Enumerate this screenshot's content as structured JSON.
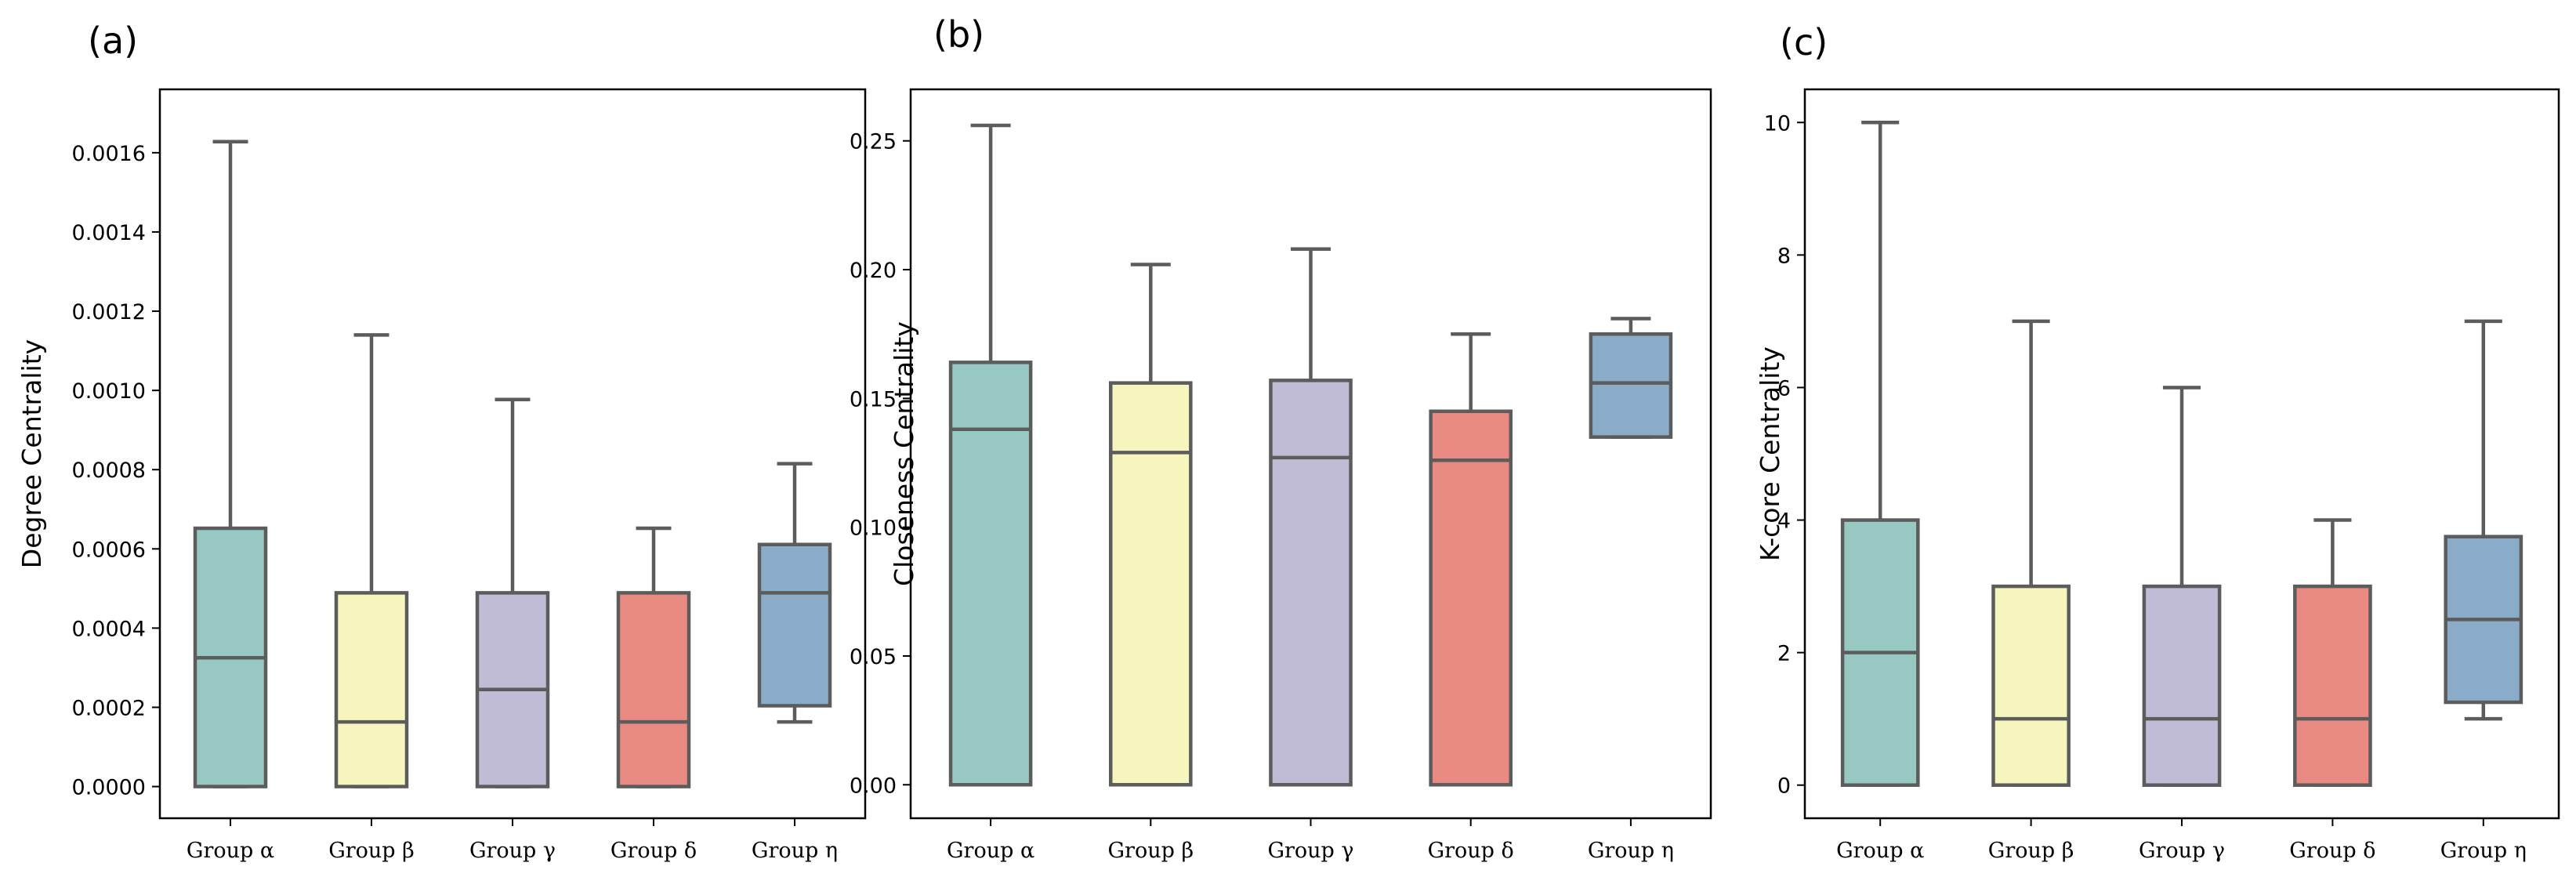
{
  "chart_data": [
    {
      "type": "box",
      "panel": "(a)",
      "ylabel": "Degree Centrality",
      "ylim": [
        -8e-05,
        0.00176
      ],
      "yticks": [
        "0.0000",
        "0.0002",
        "0.0004",
        "0.0006",
        "0.0008",
        "0.0010",
        "0.0012",
        "0.0014",
        "0.0016"
      ],
      "ytick_values": [
        0,
        0.0002,
        0.0004,
        0.0006,
        0.0008,
        0.001,
        0.0012,
        0.0014,
        0.0016
      ],
      "categories": [
        "Group α",
        "Group β",
        "Group γ",
        "Group δ",
        "Group η"
      ],
      "boxes": [
        {
          "whislo": 0,
          "q1": 0,
          "med": 0.000325,
          "q3": 0.000652,
          "whishi": 0.001628
        },
        {
          "whislo": 0,
          "q1": 0,
          "med": 0.000163,
          "q3": 0.000489,
          "whishi": 0.00114
        },
        {
          "whislo": 0,
          "q1": 0,
          "med": 0.000245,
          "q3": 0.000489,
          "whishi": 0.000977
        },
        {
          "whislo": 0,
          "q1": 0,
          "med": 0.000163,
          "q3": 0.000489,
          "whishi": 0.000652
        },
        {
          "whislo": 0.000163,
          "q1": 0.000204,
          "med": 0.000489,
          "q3": 0.000611,
          "whishi": 0.000815
        }
      ]
    },
    {
      "type": "box",
      "panel": "(b)",
      "ylabel": "Closeness Centrality",
      "ylim": [
        -0.013,
        0.27
      ],
      "yticks": [
        "0.00",
        "0.05",
        "0.10",
        "0.15",
        "0.20",
        "0.25"
      ],
      "ytick_values": [
        0,
        0.05,
        0.1,
        0.15,
        0.2,
        0.25
      ],
      "categories": [
        "Group α",
        "Group β",
        "Group γ",
        "Group δ",
        "Group η"
      ],
      "boxes": [
        {
          "whislo": 0,
          "q1": 0,
          "med": 0.138,
          "q3": 0.164,
          "whishi": 0.256
        },
        {
          "whislo": 0,
          "q1": 0,
          "med": 0.129,
          "q3": 0.156,
          "whishi": 0.202
        },
        {
          "whislo": 0,
          "q1": 0,
          "med": 0.127,
          "q3": 0.157,
          "whishi": 0.208
        },
        {
          "whislo": 0,
          "q1": 0,
          "med": 0.126,
          "q3": 0.145,
          "whishi": 0.175
        },
        {
          "whislo": 0.135,
          "q1": 0.135,
          "med": 0.156,
          "q3": 0.175,
          "whishi": 0.181
        }
      ]
    },
    {
      "type": "box",
      "panel": "(c)",
      "ylabel": "K-core Centrality",
      "ylim": [
        -0.5,
        10.5
      ],
      "yticks": [
        "0",
        "2",
        "4",
        "6",
        "8",
        "10"
      ],
      "ytick_values": [
        0,
        2,
        4,
        6,
        8,
        10
      ],
      "categories": [
        "Group α",
        "Group β",
        "Group γ",
        "Group δ",
        "Group η"
      ],
      "boxes": [
        {
          "whislo": 0,
          "q1": 0,
          "med": 2,
          "q3": 4,
          "whishi": 10
        },
        {
          "whislo": 0,
          "q1": 0,
          "med": 1,
          "q3": 3,
          "whishi": 7
        },
        {
          "whislo": 0,
          "q1": 0,
          "med": 1,
          "q3": 3,
          "whishi": 6
        },
        {
          "whislo": 0,
          "q1": 0,
          "med": 1,
          "q3": 3,
          "whishi": 4
        },
        {
          "whislo": 1,
          "q1": 1.25,
          "med": 2.5,
          "q3": 3.75,
          "whishi": 7
        }
      ]
    }
  ],
  "palette": [
    "#97c9c2",
    "#f6f5bd",
    "#c0bcd6",
    "#e98a82",
    "#8aacc8"
  ],
  "box_line_color": "#5c5c5c"
}
